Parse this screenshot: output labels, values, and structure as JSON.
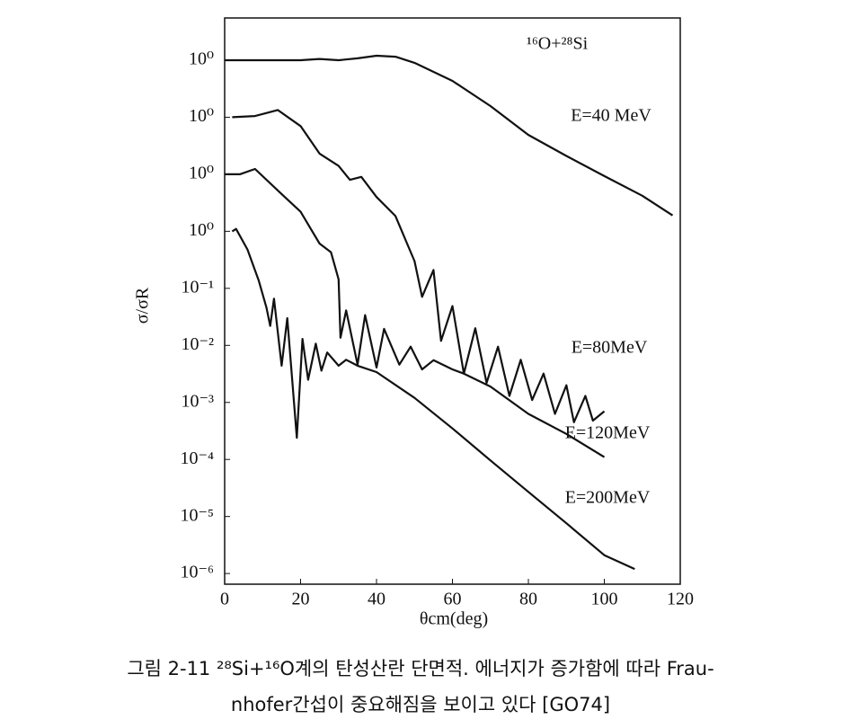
{
  "chart_data": {
    "type": "line",
    "title": "¹⁶O+²⁸Si",
    "x_label": "θcm(deg)",
    "y_label": "σ/σR",
    "caption": [
      "그림 2-11 ²⁸Si+¹⁶O계의 탄성산란 단면적. 에너지가 증가함에 따라 Frau-",
      "nhofer간섭이 중요해짐을 보이고 있다 [GO74]"
    ],
    "log_y": true,
    "xlim": [
      0,
      120
    ],
    "xticks": [
      0,
      20,
      40,
      60,
      80,
      100,
      120
    ],
    "ylim": [
      6.5e-07,
      5500
    ],
    "yticks": [
      {
        "value": 1000,
        "label": "10⁰"
      },
      {
        "value": 100,
        "label": "10⁰"
      },
      {
        "value": 10,
        "label": "10⁰"
      },
      {
        "value": 1,
        "label": "10⁰"
      },
      {
        "value": 0.1,
        "label": "10⁻¹"
      },
      {
        "value": 0.01,
        "label": "10⁻²"
      },
      {
        "value": 0.001,
        "label": "10⁻³"
      },
      {
        "value": 0.0001,
        "label": "10⁻⁴"
      },
      {
        "value": 1e-05,
        "label": "10⁻⁵"
      },
      {
        "value": 1e-06,
        "label": "10⁻⁶"
      }
    ],
    "series": [
      {
        "name": "E=40 MeV",
        "color": "#111111",
        "x": [
          0,
          10,
          20,
          25,
          30,
          35,
          40,
          45,
          50,
          60,
          70,
          80,
          90,
          100,
          110,
          118
        ],
        "values": [
          1000,
          1000,
          1000,
          1050,
          1000,
          1080,
          1200,
          1150,
          900,
          434,
          157,
          49,
          21,
          9.3,
          4.2,
          1.9
        ]
      },
      {
        "name": "E=80MeV",
        "color": "#111111",
        "x": [
          2,
          8,
          14,
          20,
          25,
          30,
          33,
          36,
          40,
          45,
          48,
          50,
          52,
          55,
          57,
          60,
          63,
          66,
          69,
          72,
          75,
          78,
          81,
          84,
          87,
          90,
          92,
          95,
          97,
          100
        ],
        "values": [
          100,
          105,
          134,
          70,
          23,
          14,
          8,
          9,
          4,
          1.85,
          0.62,
          0.3,
          0.071,
          0.21,
          0.012,
          0.049,
          0.0032,
          0.02,
          0.0022,
          0.0095,
          0.0013,
          0.0056,
          0.0011,
          0.0032,
          0.00063,
          0.002,
          0.00045,
          0.0013,
          0.00048,
          0.0007
        ]
      },
      {
        "name": "E=120MeV",
        "color": "#111111",
        "x": [
          0,
          4,
          8,
          15,
          20,
          25,
          28,
          30,
          30.5,
          32,
          35,
          37,
          40,
          42,
          46,
          49,
          52,
          55,
          60,
          63,
          70,
          80,
          90,
          100
        ],
        "values": [
          10,
          10,
          12.4,
          4.5,
          2.2,
          0.61,
          0.43,
          0.144,
          0.0136,
          0.041,
          0.0046,
          0.034,
          0.0041,
          0.0195,
          0.0046,
          0.0095,
          0.0038,
          0.0055,
          0.0038,
          0.0032,
          0.0019,
          0.00063,
          0.00028,
          0.00011
        ]
      },
      {
        "name": "E=200MeV",
        "color": "#111111",
        "x": [
          2,
          3,
          6,
          9,
          11,
          12,
          13,
          15,
          16.5,
          19,
          20.5,
          22,
          24,
          25.5,
          27,
          30,
          32,
          35,
          40,
          50,
          60,
          70,
          80,
          90,
          100,
          108
        ],
        "values": [
          1,
          1.1,
          0.48,
          0.136,
          0.046,
          0.022,
          0.066,
          0.0044,
          0.03,
          0.00024,
          0.013,
          0.0025,
          0.0107,
          0.0036,
          0.0075,
          0.0044,
          0.0056,
          0.0044,
          0.0034,
          0.0012,
          0.00035,
          9.6e-05,
          2.7e-05,
          7.6e-06,
          2.1e-06,
          1.2e-06
        ]
      }
    ]
  }
}
